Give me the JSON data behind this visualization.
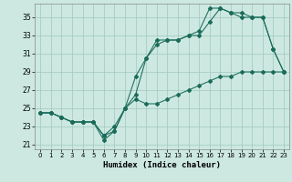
{
  "xlabel": "Humidex (Indice chaleur)",
  "bg_color": "#cce8e0",
  "grid_color": "#a0c8be",
  "line_color": "#1a6b5a",
  "xlim": [
    -0.5,
    23.5
  ],
  "ylim": [
    20.5,
    36.5
  ],
  "yticks": [
    21,
    23,
    25,
    27,
    29,
    31,
    33,
    35
  ],
  "xticks": [
    0,
    1,
    2,
    3,
    4,
    5,
    6,
    7,
    8,
    9,
    10,
    11,
    12,
    13,
    14,
    15,
    16,
    17,
    18,
    19,
    20,
    21,
    22,
    23
  ],
  "series1_x": [
    0,
    1,
    2,
    3,
    4,
    5,
    6,
    7,
    8,
    9,
    10,
    11,
    12,
    13,
    14,
    15,
    16,
    17,
    18,
    19,
    20,
    21,
    22,
    23
  ],
  "series1_y": [
    24.5,
    24.5,
    24.0,
    23.5,
    23.5,
    23.5,
    21.5,
    22.5,
    25.0,
    26.5,
    30.5,
    32.5,
    32.5,
    32.5,
    33.0,
    33.0,
    34.5,
    36.0,
    35.5,
    35.0,
    35.0,
    35.0,
    31.5,
    29.0
  ],
  "series2_x": [
    0,
    1,
    2,
    3,
    4,
    5,
    6,
    7,
    8,
    9,
    10,
    11,
    12,
    13,
    14,
    15,
    16,
    17,
    18,
    19,
    20,
    21,
    22,
    23
  ],
  "series2_y": [
    24.5,
    24.5,
    24.0,
    23.5,
    23.5,
    23.5,
    22.0,
    23.0,
    25.0,
    28.5,
    30.5,
    32.0,
    32.5,
    32.5,
    33.0,
    33.5,
    36.0,
    36.0,
    35.5,
    35.5,
    35.0,
    35.0,
    31.5,
    29.0
  ],
  "series3_x": [
    0,
    1,
    2,
    3,
    4,
    5,
    6,
    7,
    8,
    9,
    10,
    11,
    12,
    13,
    14,
    15,
    16,
    17,
    18,
    19,
    20,
    21,
    22,
    23
  ],
  "series3_y": [
    24.5,
    24.5,
    24.0,
    23.5,
    23.5,
    23.5,
    22.0,
    22.5,
    25.0,
    26.0,
    25.5,
    25.5,
    26.0,
    26.5,
    27.0,
    27.5,
    28.0,
    28.5,
    28.5,
    29.0,
    29.0,
    29.0,
    29.0,
    29.0
  ]
}
